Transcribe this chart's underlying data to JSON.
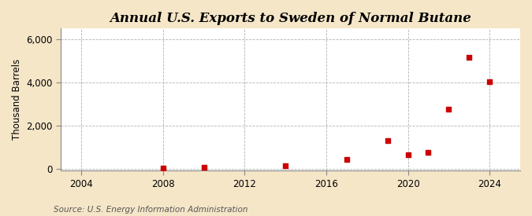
{
  "title": "Annual U.S. Exports to Sweden of Normal Butane",
  "ylabel": "Thousand Barrels",
  "source_text": "Source: U.S. Energy Information Administration",
  "background_color": "#f5e6c8",
  "plot_background_color": "#ffffff",
  "grid_color": "#aaaaaa",
  "point_color": "#cc0000",
  "data_points": [
    {
      "year": 2008,
      "value": 28
    },
    {
      "year": 2010,
      "value": 55
    },
    {
      "year": 2014,
      "value": 130
    },
    {
      "year": 2017,
      "value": 420
    },
    {
      "year": 2019,
      "value": 1300
    },
    {
      "year": 2020,
      "value": 630
    },
    {
      "year": 2021,
      "value": 750
    },
    {
      "year": 2022,
      "value": 2750
    },
    {
      "year": 2023,
      "value": 5150
    },
    {
      "year": 2024,
      "value": 4050
    }
  ],
  "xlim": [
    2003,
    2025.5
  ],
  "ylim": [
    -100,
    6500
  ],
  "yticks": [
    0,
    2000,
    4000,
    6000
  ],
  "xticks": [
    2004,
    2008,
    2012,
    2016,
    2020,
    2024
  ],
  "title_fontsize": 12,
  "label_fontsize": 8.5,
  "tick_fontsize": 8.5,
  "source_fontsize": 7.5,
  "marker_size": 4
}
